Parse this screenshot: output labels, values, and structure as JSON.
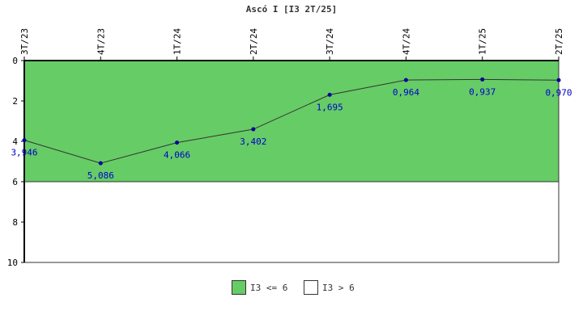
{
  "chart_data": {
    "type": "line",
    "title": "Ascó I [I3 2T/25]",
    "categories": [
      "3T/23",
      "4T/23",
      "1T/24",
      "2T/24",
      "3T/24",
      "4T/24",
      "1T/25",
      "2T/25"
    ],
    "series": [
      {
        "values": [
          3.946,
          5.086,
          4.066,
          3.402,
          1.695,
          0.964,
          0.937,
          0.97
        ],
        "labels": [
          "3,946",
          "5,086",
          "4,066",
          "3,402",
          "1,695",
          "0,964",
          "0,937",
          "0,970"
        ]
      }
    ],
    "yticks": [
      "0",
      "2",
      "4",
      "6",
      "8",
      "10"
    ],
    "ylim": [
      0,
      10
    ],
    "y_inverted": true,
    "threshold": 6,
    "bands": [
      {
        "label": "I3 <= 6",
        "color": "#66cc66",
        "from": 0,
        "to": 6
      },
      {
        "label": "I3 > 6",
        "color": "#ffffff",
        "from": 6,
        "to": 10
      }
    ],
    "line_color": "#333333",
    "point_color": "#000099",
    "label_color": "#0000cc",
    "legend_position": "bottom"
  }
}
